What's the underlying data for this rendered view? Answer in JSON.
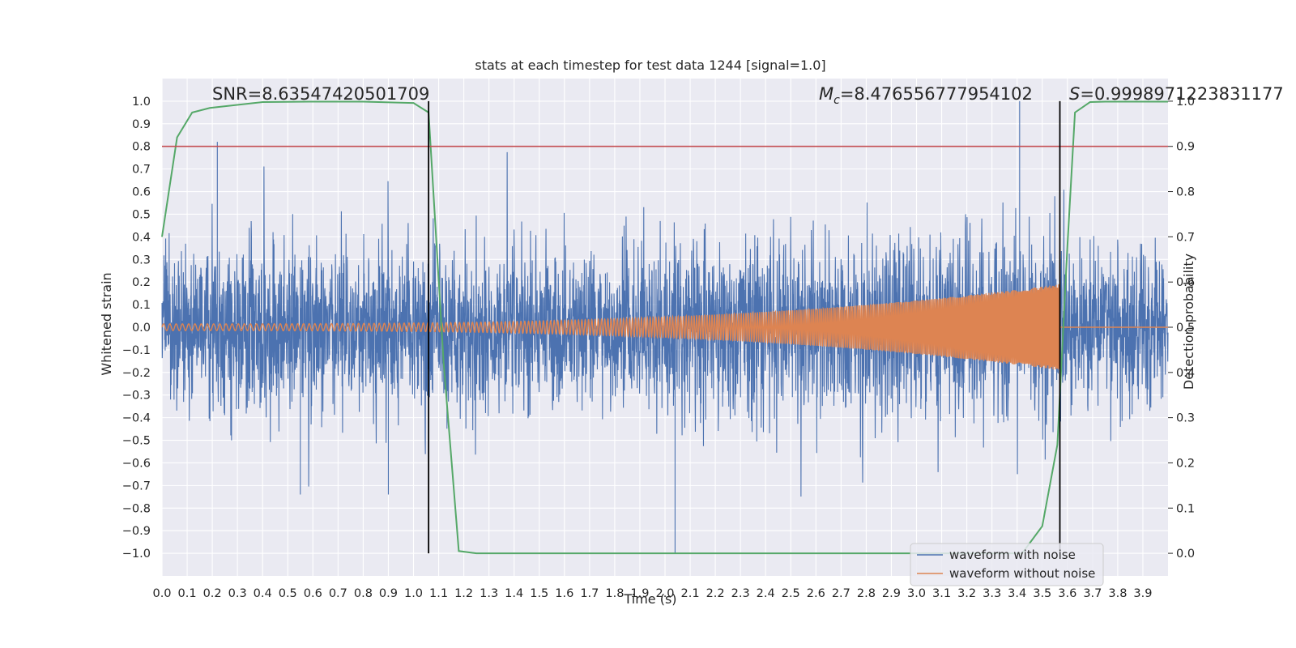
{
  "chart_data": {
    "type": "line",
    "title": "stats at each timestep for test data 1244 [signal=1.0]",
    "xlabel": "Time (s)",
    "ylabel": "Whitened strain",
    "y2label": "Detection probability",
    "xlim": [
      0.0,
      4.0
    ],
    "ylim": [
      -1.1,
      1.1
    ],
    "y2lim": [
      -0.05,
      1.05
    ],
    "xticks": [
      "0.0",
      "0.1",
      "0.2",
      "0.3",
      "0.4",
      "0.5",
      "0.6",
      "0.7",
      "0.8",
      "0.9",
      "1.0",
      "1.1",
      "1.2",
      "1.3",
      "1.4",
      "1.5",
      "1.6",
      "1.7",
      "1.8",
      "1.9",
      "2.0",
      "2.1",
      "2.2",
      "2.3",
      "2.4",
      "2.5",
      "2.6",
      "2.7",
      "2.8",
      "2.9",
      "3.0",
      "3.1",
      "3.2",
      "3.3",
      "3.4",
      "3.5",
      "3.6",
      "3.7",
      "3.8",
      "3.9"
    ],
    "yticks": [
      "1.0",
      "0.9",
      "0.8",
      "0.7",
      "0.6",
      "0.5",
      "0.4",
      "0.3",
      "0.2",
      "0.1",
      "0.0",
      "−0.1",
      "−0.2",
      "−0.3",
      "−0.4",
      "−0.5",
      "−0.6",
      "−0.7",
      "−0.8",
      "−0.9",
      "−1.0"
    ],
    "y2ticks": [
      "1.0",
      "0.9",
      "0.8",
      "0.7",
      "0.6",
      "0.5",
      "0.4",
      "0.3",
      "0.2",
      "0.1",
      "0.0"
    ],
    "grid": true,
    "legend_position": "bottom-right",
    "background_color": "#eaeaf2",
    "annotations": {
      "snr": "SNR=8.63547420501709",
      "mc_symbol": "M",
      "mc_sub": "c",
      "mc_value": "=8.476556777954102",
      "s_symbol": "S",
      "s_value": "=0.9998971223831177"
    },
    "threshold_line": {
      "y2": 0.9,
      "color": "#c44e52"
    },
    "vertical_lines": [
      {
        "x": 1.06,
        "color": "#000000"
      },
      {
        "x": 3.57,
        "color": "#000000"
      }
    ],
    "series": [
      {
        "name": "waveform with noise",
        "color": "#4c72b0",
        "description_points": {
          "approx_amplitude": 0.35,
          "spike_peaks": [
            [
              0.22,
              0.82
            ],
            [
              3.41,
              1.0
            ],
            [
              2.04,
              -1.0
            ],
            [
              0.55,
              -0.74
            ],
            [
              0.9,
              -0.74
            ]
          ]
        }
      },
      {
        "name": "waveform without noise",
        "color": "#dd8452",
        "chirp": {
          "start_amplitude": 0.015,
          "end_amplitude": 0.19,
          "start_freq_hz": 40,
          "end_freq_hz": 200,
          "end_time": 3.57
        }
      },
      {
        "name": "detection probability",
        "axis": "right",
        "color": "#55a868",
        "x": [
          0.0,
          0.06,
          0.12,
          0.19,
          0.4,
          0.6,
          0.8,
          1.0,
          1.06,
          1.12,
          1.18,
          1.25,
          1.4,
          2.0,
          3.0,
          3.42,
          3.5,
          3.56,
          3.6,
          3.63,
          3.69,
          3.75,
          4.0
        ],
        "y": [
          0.7,
          0.92,
          0.975,
          0.985,
          0.998,
          0.999,
          0.999,
          0.996,
          0.975,
          0.42,
          0.005,
          0.0,
          0.0,
          0.0,
          0.0,
          0.0,
          0.06,
          0.24,
          0.68,
          0.975,
          0.998,
          0.999,
          0.999
        ]
      }
    ]
  }
}
